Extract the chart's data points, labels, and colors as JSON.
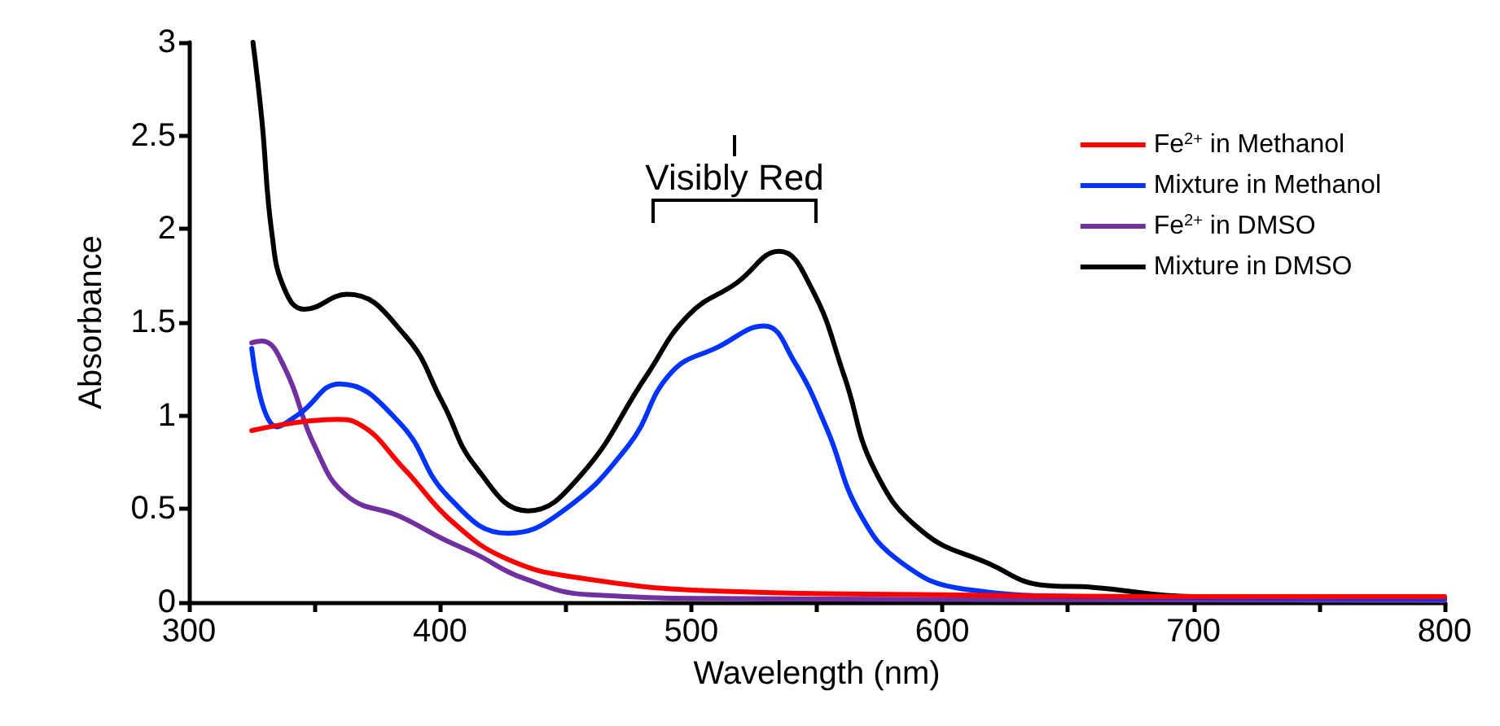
{
  "chart_data": {
    "type": "line",
    "xlabel": "Wavelength (nm)",
    "ylabel": "Absorbance",
    "legend": "top right",
    "grid": false,
    "xlim": [
      300,
      800
    ],
    "xticks": [
      300,
      {
        "value": 350,
        "label": null
      },
      400,
      {
        "value": 450,
        "label": null
      },
      500,
      {
        "value": 550,
        "label": null
      },
      600,
      {
        "value": 650,
        "label": null
      },
      700,
      {
        "value": 750,
        "label": null
      },
      800
    ],
    "ylim": [
      0,
      3
    ],
    "yticks": [
      0,
      0.5,
      1,
      1.5,
      2,
      2.5,
      3
    ],
    "annotations": [
      "Visibly Red"
    ],
    "series": [
      {
        "name": "Fe$^{2+}$ in Methanol",
        "color": "#ff0000",
        "x": [
          325,
          359,
          367,
          386,
          405,
          427,
          456,
          511,
          600,
          700,
          800
        ],
        "values": [
          0.92,
          0.98,
          0.96,
          0.71,
          0.43,
          0.23,
          0.13,
          0.06,
          0.04,
          0.03,
          0.03
        ]
      },
      {
        "name": "Mixture in Methanol",
        "color": "#0033ff",
        "x": [
          325,
          335,
          344,
          360,
          384,
          403,
          427,
          448,
          475,
          492,
          511,
          529,
          541,
          554,
          567,
          584,
          609,
          660,
          800
        ],
        "values": [
          1.36,
          0.94,
          1.01,
          1.17,
          0.96,
          0.57,
          0.37,
          0.48,
          0.84,
          1.23,
          1.37,
          1.48,
          1.29,
          0.93,
          0.48,
          0.21,
          0.07,
          0.03,
          0.02
        ]
      },
      {
        "name": "Fe$^{2+}$ in DMSO",
        "color": "#7030a0",
        "x": [
          325,
          329,
          338,
          350,
          363,
          384,
          401,
          414,
          433,
          460,
          520,
          800
        ],
        "values": [
          1.39,
          1.4,
          1.26,
          0.84,
          0.57,
          0.46,
          0.34,
          0.26,
          0.13,
          0.04,
          0.02,
          0.01
        ]
      },
      {
        "name": "Mixture in DMSO",
        "color": "#000000",
        "x": [
          325.5,
          329,
          333,
          338,
          346,
          363,
          386,
          401,
          414,
          435,
          456,
          482,
          499,
          518,
          535,
          548,
          561,
          573,
          592,
          618,
          641,
          660,
          700,
          800
        ],
        "values": [
          3.0,
          2.59,
          1.98,
          1.68,
          1.57,
          1.65,
          1.43,
          1.07,
          0.73,
          0.49,
          0.68,
          1.21,
          1.54,
          1.71,
          1.88,
          1.68,
          1.21,
          0.71,
          0.38,
          0.21,
          0.09,
          0.08,
          0.03,
          0.02
        ]
      }
    ]
  }
}
